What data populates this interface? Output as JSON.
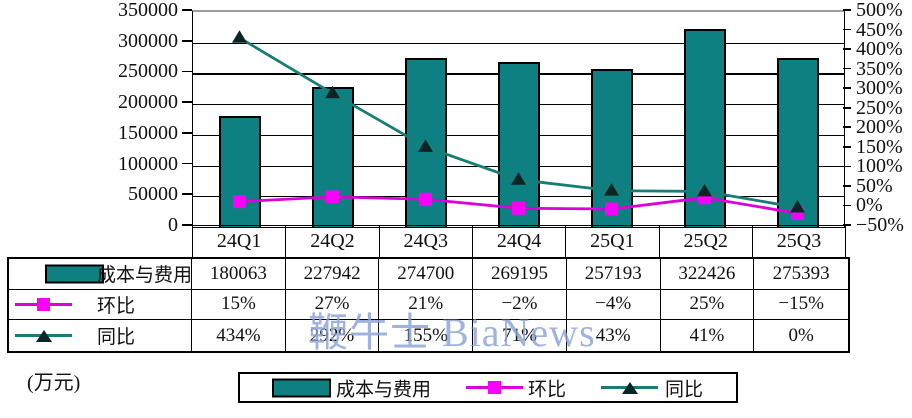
{
  "unit_label": "(万元)",
  "watermark_text": "鞭牛士 BiaNews",
  "colors": {
    "bar": "#0F8081",
    "bar_border": "#000000",
    "huanbi_line": "#DB00DB",
    "huanbi_marker": "#FA00FA",
    "tongbi_line": "#177E75",
    "tongbi_marker": "#0C2424",
    "watermark": "#8CA3D8",
    "top_border_gray": "#9E9E9E"
  },
  "chart_data": {
    "type": "bar",
    "title": "",
    "xlabel": "",
    "ylabel_left_unit": "万元",
    "grid": true,
    "legend_position": "bottom",
    "categories": [
      "24Q1",
      "24Q2",
      "24Q3",
      "24Q4",
      "25Q1",
      "25Q2",
      "25Q3"
    ],
    "series": [
      {
        "name": "成本与费用",
        "chart_type": "bar",
        "axis": "left",
        "values": [
          180063,
          227942,
          274700,
          269195,
          257193,
          322426,
          275393
        ],
        "labels": [
          "180063",
          "227942",
          "274700",
          "269195",
          "257193",
          "322426",
          "275393"
        ]
      },
      {
        "name": "环比",
        "chart_type": "line",
        "marker": "square",
        "axis": "right",
        "values_percent": [
          15,
          27,
          21,
          -2,
          -4,
          25,
          -15
        ],
        "labels": [
          "15%",
          "27%",
          "21%",
          "−2%",
          "−4%",
          "25%",
          "−15%"
        ]
      },
      {
        "name": "同比",
        "chart_type": "line",
        "marker": "triangle",
        "axis": "right",
        "values_percent": [
          434,
          292,
          155,
          71,
          43,
          41,
          0
        ],
        "labels": [
          "434%",
          "292%",
          "155%",
          "71%",
          "43%",
          "41%",
          "0%"
        ]
      }
    ],
    "left_axis": {
      "min": 0,
      "max": 350000,
      "step": 50000,
      "tick_labels": [
        "350000",
        "300000",
        "250000",
        "200000",
        "150000",
        "100000",
        "50000",
        "0"
      ]
    },
    "right_axis": {
      "min_percent": -50,
      "max_percent": 500,
      "step_percent": 50,
      "tick_labels": [
        "500%",
        "450%",
        "400%",
        "350%",
        "300%",
        "250%",
        "200%",
        "150%",
        "100%",
        "50%",
        "0%",
        "−50%"
      ]
    }
  },
  "legend": {
    "items": [
      {
        "label": "成本与费用",
        "symbol": "bar"
      },
      {
        "label": "环比",
        "symbol": "line-square"
      },
      {
        "label": "同比",
        "symbol": "line-triangle"
      }
    ]
  }
}
